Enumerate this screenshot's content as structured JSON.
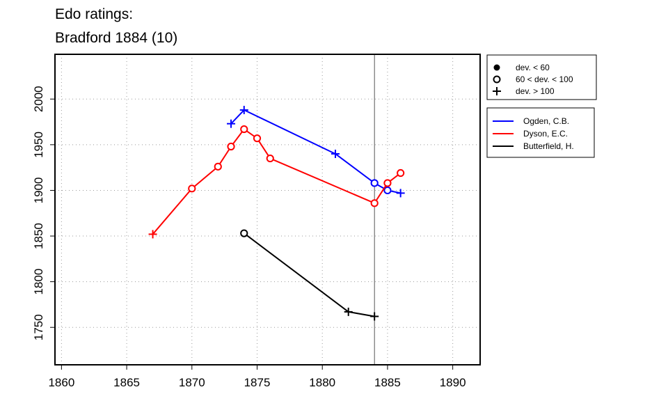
{
  "chart_data": {
    "type": "line",
    "title": "Edo ratings:",
    "subtitle": "Bradford 1884 (10)",
    "xlabel": "",
    "ylabel": "",
    "xlim": [
      1859.5,
      1892.1
    ],
    "ylim": [
      1709,
      2049
    ],
    "xticks": [
      1860,
      1865,
      1870,
      1875,
      1880,
      1885,
      1890
    ],
    "yticks": [
      1750,
      1800,
      1850,
      1900,
      1950,
      2000
    ],
    "grid": "dotted",
    "reference_line_x": 1884,
    "marker_legend": [
      {
        "label": "dev. < 60",
        "marker": "dot"
      },
      {
        "label": "60 < dev. < 100",
        "marker": "circle"
      },
      {
        "label": "dev. > 100",
        "marker": "plus"
      }
    ],
    "legend_placement": "right",
    "series": [
      {
        "name": "Ogden, C.B.",
        "color": "#0000ff",
        "points": [
          {
            "x": 1873,
            "y": 1973,
            "marker": "plus"
          },
          {
            "x": 1874,
            "y": 1988,
            "marker": "plus"
          },
          {
            "x": 1881,
            "y": 1940,
            "marker": "plus"
          },
          {
            "x": 1884,
            "y": 1908,
            "marker": "circle"
          },
          {
            "x": 1885,
            "y": 1900,
            "marker": "circle"
          },
          {
            "x": 1886,
            "y": 1897,
            "marker": "plus"
          }
        ]
      },
      {
        "name": "Dyson, E.C.",
        "color": "#ff0000",
        "points": [
          {
            "x": 1867,
            "y": 1852,
            "marker": "plus"
          },
          {
            "x": 1870,
            "y": 1902,
            "marker": "circle"
          },
          {
            "x": 1872,
            "y": 1926,
            "marker": "circle"
          },
          {
            "x": 1873,
            "y": 1948,
            "marker": "circle"
          },
          {
            "x": 1874,
            "y": 1967,
            "marker": "circle"
          },
          {
            "x": 1875,
            "y": 1957,
            "marker": "circle"
          },
          {
            "x": 1876,
            "y": 1935,
            "marker": "circle"
          },
          {
            "x": 1884,
            "y": 1886,
            "marker": "circle"
          },
          {
            "x": 1885,
            "y": 1908,
            "marker": "circle"
          },
          {
            "x": 1886,
            "y": 1919,
            "marker": "circle"
          }
        ]
      },
      {
        "name": "Butterfield, H.",
        "color": "#000000",
        "points": [
          {
            "x": 1874,
            "y": 1853,
            "marker": "circle"
          },
          {
            "x": 1882,
            "y": 1767,
            "marker": "plus"
          },
          {
            "x": 1884,
            "y": 1762,
            "marker": "plus"
          }
        ]
      }
    ]
  }
}
